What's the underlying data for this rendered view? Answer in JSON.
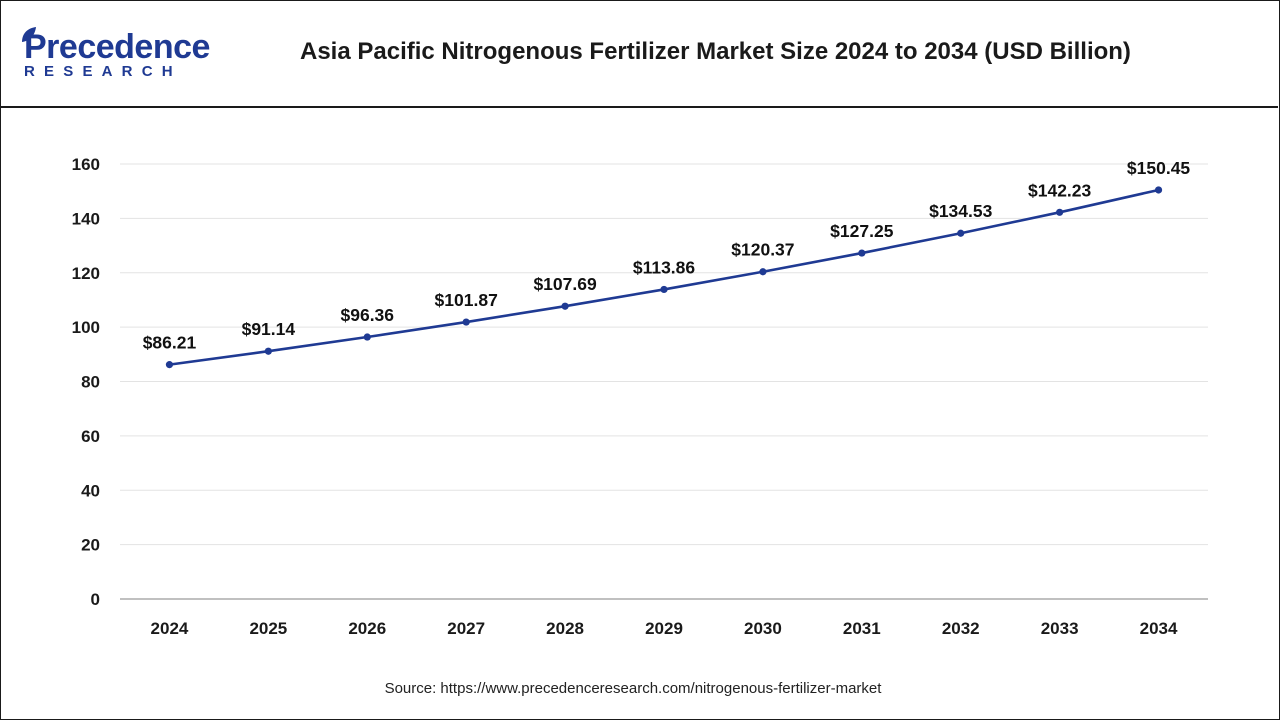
{
  "brand": {
    "logo_word": "Precedence",
    "logo_sub": "RESEARCH",
    "color": "#1f3a93"
  },
  "title": "Asia Pacific Nitrogenous Fertilizer Market Size 2024 to 2034 (USD Billion)",
  "source": "Source: https://www.precedenceresearch.com/nitrogenous-fertilizer-market",
  "chart_data": {
    "type": "line",
    "title": "Asia Pacific Nitrogenous Fertilizer Market Size 2024 to 2034 (USD Billion)",
    "xlabel": "",
    "ylabel": "",
    "categories": [
      "2024",
      "2025",
      "2026",
      "2027",
      "2028",
      "2029",
      "2030",
      "2031",
      "2032",
      "2033",
      "2034"
    ],
    "series": [
      {
        "values": [
          86.21,
          91.14,
          96.36,
          101.87,
          107.69,
          113.86,
          120.37,
          127.25,
          134.53,
          142.23,
          150.45
        ],
        "labels": [
          "$86.21",
          "$91.14",
          "$96.36",
          "$101.87",
          "$107.69",
          "$113.86",
          "$120.37",
          "$127.25",
          "$134.53",
          "$142.23",
          "$150.45"
        ],
        "color": "#1f3a93"
      }
    ],
    "ylim": [
      0,
      160
    ],
    "yticks": [
      0,
      20,
      40,
      60,
      80,
      100,
      120,
      140,
      160
    ],
    "grid": true,
    "legend": "none"
  }
}
